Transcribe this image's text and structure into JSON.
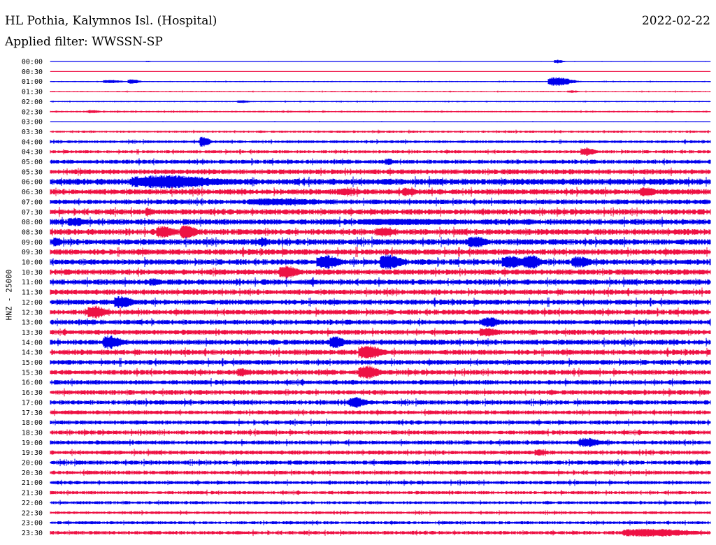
{
  "header": {
    "station": "HL Pothia, Kalymnos Isl. (Hospital)",
    "date": "2022-02-22",
    "filter": "Applied filter: WWSSN-SP"
  },
  "chart_data": {
    "type": "line",
    "title": "HL Pothia, Kalymnos Isl. (Hospital)",
    "subtitle": "Applied filter: WWSSN-SP",
    "date": "2022-02-22",
    "ylabel": "HNZ - 25000",
    "xlabel": "",
    "row_labels": [
      "00:00",
      "00:30",
      "01:00",
      "01:30",
      "02:00",
      "02:30",
      "03:00",
      "03:30",
      "04:00",
      "04:30",
      "05:00",
      "05:30",
      "06:00",
      "06:30",
      "07:00",
      "07:30",
      "08:00",
      "08:30",
      "09:00",
      "09:30",
      "10:00",
      "10:30",
      "11:00",
      "11:30",
      "12:00",
      "12:30",
      "13:00",
      "13:30",
      "14:00",
      "14:30",
      "15:00",
      "15:30",
      "16:00",
      "16:30",
      "17:00",
      "17:30",
      "18:00",
      "18:30",
      "19:00",
      "19:30",
      "20:00",
      "20:30",
      "21:00",
      "21:30",
      "22:00",
      "22:30",
      "23:00",
      "23:30"
    ],
    "row_colors": [
      "#0000ee",
      "#ee1144"
    ],
    "grid": false,
    "noise_level": [
      0.4,
      0.3,
      0.8,
      0.9,
      0.9,
      1.2,
      0.5,
      1.6,
      2.0,
      2.3,
      3.0,
      3.6,
      4.6,
      4.0,
      3.6,
      4.0,
      4.2,
      4.2,
      4.3,
      4.2,
      4.0,
      4.0,
      4.0,
      3.8,
      3.8,
      3.7,
      3.6,
      3.6,
      3.8,
      3.8,
      3.6,
      3.5,
      3.4,
      3.4,
      3.2,
      3.0,
      3.0,
      3.0,
      3.0,
      3.0,
      3.0,
      2.8,
      2.6,
      2.4,
      2.2,
      2.0,
      2.2,
      2.6
    ],
    "bursts": [
      {
        "row": 0,
        "minute": 4.3,
        "amplitude": 1.0,
        "duration": 0.3
      },
      {
        "row": 0,
        "minute": 22.9,
        "amplitude": 2.5,
        "duration": 0.4
      },
      {
        "row": 2,
        "minute": 2.4,
        "amplitude": 2.6,
        "duration": 0.8
      },
      {
        "row": 2,
        "minute": 3.5,
        "amplitude": 3.6,
        "duration": 0.5
      },
      {
        "row": 2,
        "minute": 22.6,
        "amplitude": 6.5,
        "duration": 1.0
      },
      {
        "row": 3,
        "minute": 23.5,
        "amplitude": 1.8,
        "duration": 0.5
      },
      {
        "row": 4,
        "minute": 8.5,
        "amplitude": 2.4,
        "duration": 0.5
      },
      {
        "row": 5,
        "minute": 1.7,
        "amplitude": 2.6,
        "duration": 0.5
      },
      {
        "row": 8,
        "minute": 6.8,
        "amplitude": 8.2,
        "duration": 0.4
      },
      {
        "row": 9,
        "minute": 24.1,
        "amplitude": 6.2,
        "duration": 0.6
      },
      {
        "row": 10,
        "minute": 15.2,
        "amplitude": 5.0,
        "duration": 0.4
      },
      {
        "row": 12,
        "minute": 3.7,
        "amplitude": 9.5,
        "duration": 3.8
      },
      {
        "row": 13,
        "minute": 13.0,
        "amplitude": 5.5,
        "duration": 0.8
      },
      {
        "row": 13,
        "minute": 16.0,
        "amplitude": 6.5,
        "duration": 0.6
      },
      {
        "row": 13,
        "minute": 26.8,
        "amplitude": 7.0,
        "duration": 0.7
      },
      {
        "row": 14,
        "minute": 9.0,
        "amplitude": 5.5,
        "duration": 3.2
      },
      {
        "row": 15,
        "minute": 4.3,
        "amplitude": 7.0,
        "duration": 0.3
      },
      {
        "row": 16,
        "minute": 0.8,
        "amplitude": 6.5,
        "duration": 0.8
      },
      {
        "row": 16,
        "minute": 14.0,
        "amplitude": 5.0,
        "duration": 4.5
      },
      {
        "row": 17,
        "minute": 4.8,
        "amplitude": 9.5,
        "duration": 0.8
      },
      {
        "row": 17,
        "minute": 5.9,
        "amplitude": 10.0,
        "duration": 0.7
      },
      {
        "row": 17,
        "minute": 14.8,
        "amplitude": 7.0,
        "duration": 0.8
      },
      {
        "row": 18,
        "minute": 0.1,
        "amplitude": 7.0,
        "duration": 0.4
      },
      {
        "row": 18,
        "minute": 9.5,
        "amplitude": 7.0,
        "duration": 0.4
      },
      {
        "row": 18,
        "minute": 19.0,
        "amplitude": 8.5,
        "duration": 0.8
      },
      {
        "row": 20,
        "minute": 12.1,
        "amplitude": 10.0,
        "duration": 1.0
      },
      {
        "row": 20,
        "minute": 15.0,
        "amplitude": 11.0,
        "duration": 0.9
      },
      {
        "row": 20,
        "minute": 20.5,
        "amplitude": 9.5,
        "duration": 0.9
      },
      {
        "row": 20,
        "minute": 21.5,
        "amplitude": 11.0,
        "duration": 0.7
      },
      {
        "row": 20,
        "minute": 23.7,
        "amplitude": 8.5,
        "duration": 0.8
      },
      {
        "row": 21,
        "minute": 10.4,
        "amplitude": 9.5,
        "duration": 0.8
      },
      {
        "row": 22,
        "minute": 4.5,
        "amplitude": 6.0,
        "duration": 0.5
      },
      {
        "row": 24,
        "minute": 2.9,
        "amplitude": 9.0,
        "duration": 0.8
      },
      {
        "row": 25,
        "minute": 1.7,
        "amplitude": 9.5,
        "duration": 0.8
      },
      {
        "row": 26,
        "minute": 19.6,
        "amplitude": 7.5,
        "duration": 0.8
      },
      {
        "row": 27,
        "minute": 19.5,
        "amplitude": 7.0,
        "duration": 0.8
      },
      {
        "row": 28,
        "minute": 2.4,
        "amplitude": 10.0,
        "duration": 0.8
      },
      {
        "row": 28,
        "minute": 12.7,
        "amplitude": 9.0,
        "duration": 0.6
      },
      {
        "row": 29,
        "minute": 14.0,
        "amplitude": 10.0,
        "duration": 1.0
      },
      {
        "row": 31,
        "minute": 8.5,
        "amplitude": 6.5,
        "duration": 0.5
      },
      {
        "row": 31,
        "minute": 14.0,
        "amplitude": 10.0,
        "duration": 0.9
      },
      {
        "row": 34,
        "minute": 13.6,
        "amplitude": 8.0,
        "duration": 0.7
      },
      {
        "row": 38,
        "minute": 24.0,
        "amplitude": 7.0,
        "duration": 0.9
      },
      {
        "row": 39,
        "minute": 22.0,
        "amplitude": 5.0,
        "duration": 0.5
      },
      {
        "row": 47,
        "minute": 26.0,
        "amplitude": 6.0,
        "duration": 3.0
      }
    ]
  }
}
